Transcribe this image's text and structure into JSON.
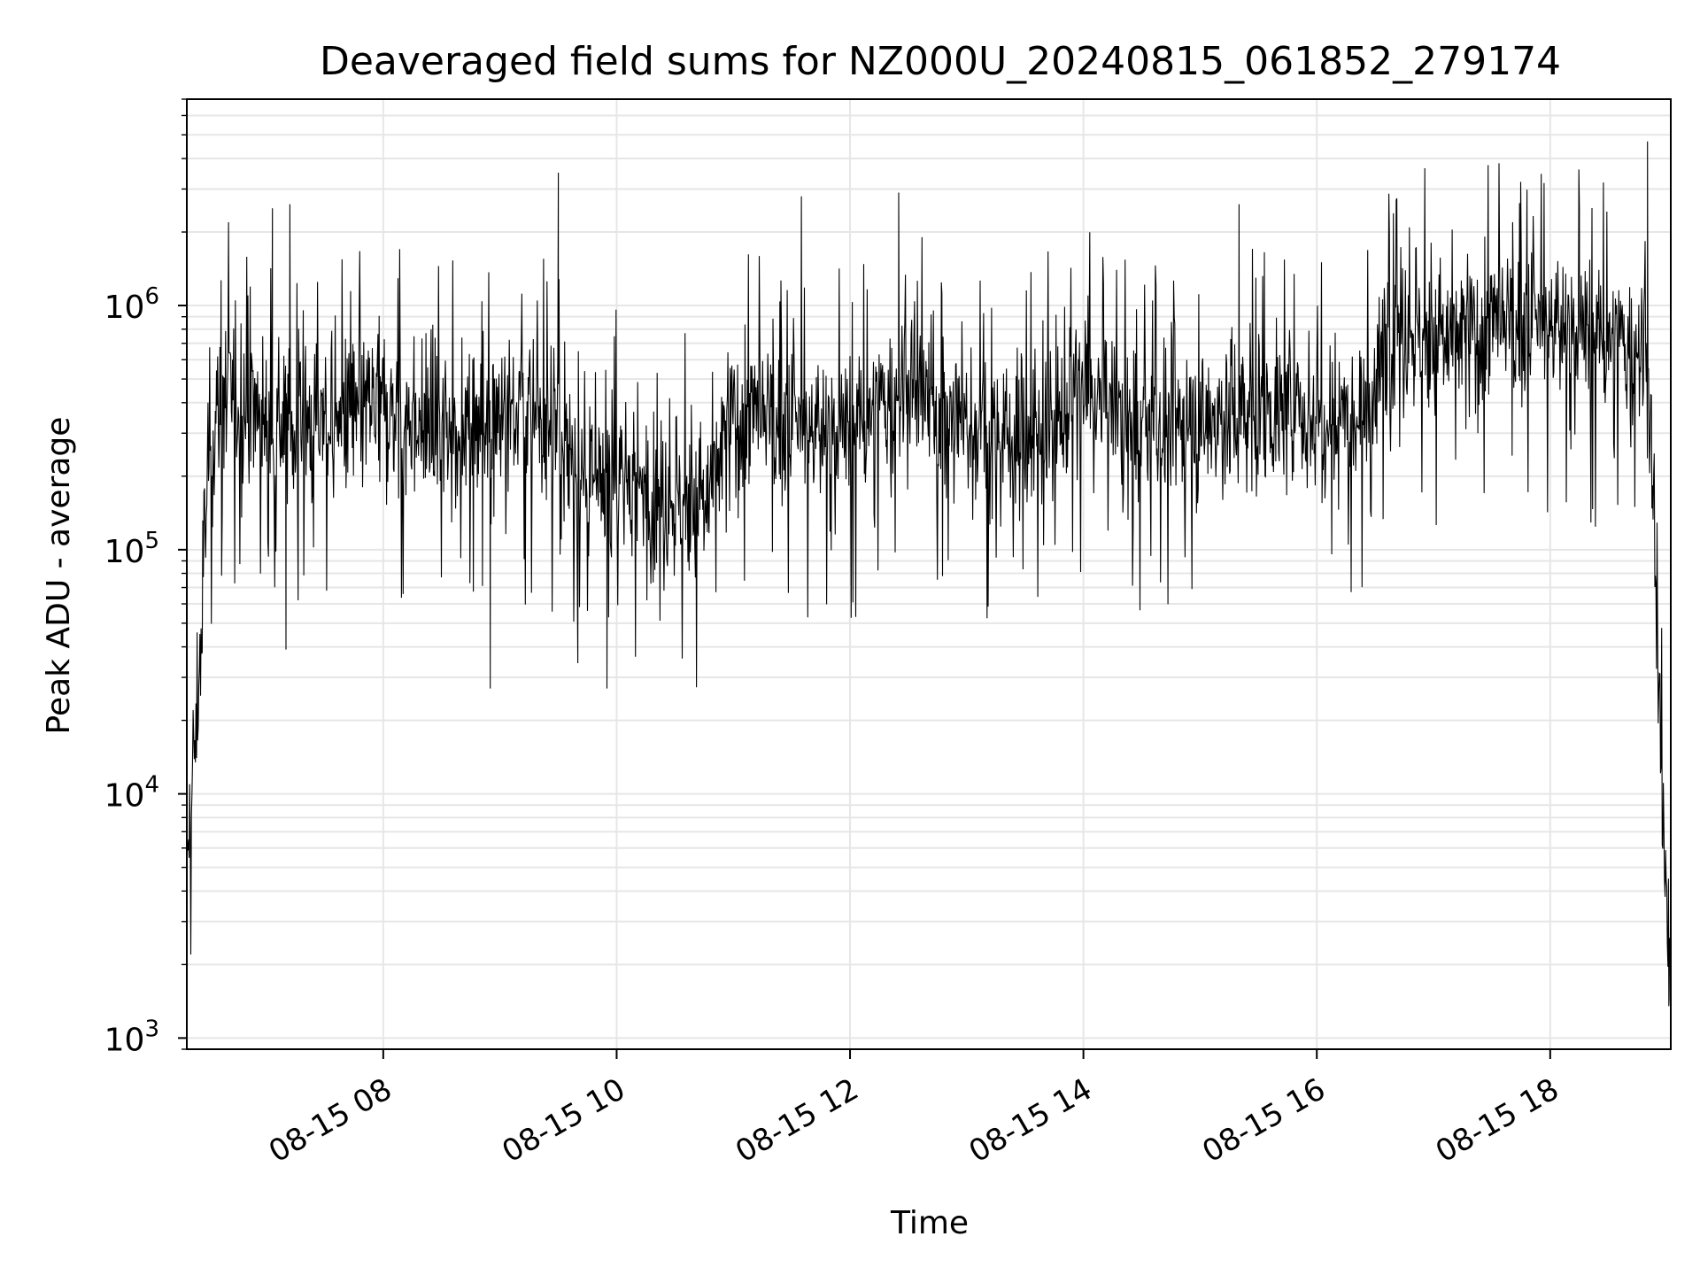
{
  "chart_data": {
    "type": "line",
    "title": "Deaveraged field sums for NZ000U_20240815_061852_279174",
    "xlabel": "Time",
    "ylabel": "Peak ADU - average",
    "yscale": "log",
    "ylim": [
      900,
      7000000
    ],
    "xlim": [
      "2024-08-15 06:19",
      "2024-08-15 19:02"
    ],
    "grid": true,
    "x_ticks": [
      {
        "time": "2024-08-15 08:00",
        "label": "08-15 08"
      },
      {
        "time": "2024-08-15 10:00",
        "label": "08-15 10"
      },
      {
        "time": "2024-08-15 12:00",
        "label": "08-15 12"
      },
      {
        "time": "2024-08-15 14:00",
        "label": "08-15 14"
      },
      {
        "time": "2024-08-15 16:00",
        "label": "08-15 16"
      },
      {
        "time": "2024-08-15 18:00",
        "label": "08-15 18"
      }
    ],
    "y_ticks": [
      {
        "value": 1000,
        "base": "10",
        "exp": "3"
      },
      {
        "value": 10000,
        "base": "10",
        "exp": "4"
      },
      {
        "value": 100000,
        "base": "10",
        "exp": "5"
      },
      {
        "value": 1000000,
        "base": "10",
        "exp": "6"
      }
    ],
    "line_color": "#000000",
    "grid_color": "#e6e6e6",
    "series": [
      {
        "noisy_trace_envelope": [
          {
            "t": "2024-08-15 06:19",
            "typical": 4000
          },
          {
            "t": "2024-08-15 06:22",
            "typical": 12000
          },
          {
            "t": "2024-08-15 06:25",
            "typical": 25000
          },
          {
            "t": "2024-08-15 06:30",
            "typical": 250000
          },
          {
            "t": "2024-08-15 06:40",
            "typical": 450000
          },
          {
            "t": "2024-08-15 07:00",
            "typical": 350000
          },
          {
            "t": "2024-08-15 07:30",
            "typical": 330000
          },
          {
            "t": "2024-08-15 08:00",
            "typical": 380000
          },
          {
            "t": "2024-08-15 08:30",
            "typical": 300000
          },
          {
            "t": "2024-08-15 09:00",
            "typical": 380000
          },
          {
            "t": "2024-08-15 09:30",
            "typical": 320000
          },
          {
            "t": "2024-08-15 09:45",
            "typical": 160000
          },
          {
            "t": "2024-08-15 10:00",
            "typical": 200000
          },
          {
            "t": "2024-08-15 10:30",
            "typical": 160000
          },
          {
            "t": "2024-08-15 10:45",
            "typical": 150000
          },
          {
            "t": "2024-08-15 11:00",
            "typical": 350000
          },
          {
            "t": "2024-08-15 11:30",
            "typical": 320000
          },
          {
            "t": "2024-08-15 12:00",
            "typical": 300000
          },
          {
            "t": "2024-08-15 12:30",
            "typical": 450000
          },
          {
            "t": "2024-08-15 13:00",
            "typical": 320000
          },
          {
            "t": "2024-08-15 13:30",
            "typical": 280000
          },
          {
            "t": "2024-08-15 14:00",
            "typical": 450000
          },
          {
            "t": "2024-08-15 14:30",
            "typical": 300000
          },
          {
            "t": "2024-08-15 15:00",
            "typical": 330000
          },
          {
            "t": "2024-08-15 15:30",
            "typical": 380000
          },
          {
            "t": "2024-08-15 16:00",
            "typical": 350000
          },
          {
            "t": "2024-08-15 16:30",
            "typical": 420000
          },
          {
            "t": "2024-08-15 16:40",
            "typical": 900000
          },
          {
            "t": "2024-08-15 17:00",
            "typical": 700000
          },
          {
            "t": "2024-08-15 17:30",
            "typical": 800000
          },
          {
            "t": "2024-08-15 18:00",
            "typical": 850000
          },
          {
            "t": "2024-08-15 18:30",
            "typical": 700000
          },
          {
            "t": "2024-08-15 18:50",
            "typical": 600000
          },
          {
            "t": "2024-08-15 18:54",
            "typical": 80000
          },
          {
            "t": "2024-08-15 18:57",
            "typical": 12000
          },
          {
            "t": "2024-08-15 19:00",
            "typical": 3000
          },
          {
            "t": "2024-08-15 19:02",
            "typical": 2000
          }
        ],
        "notable_peaks": [
          {
            "t": "2024-08-15 07:03",
            "value": 2500000
          },
          {
            "t": "2024-08-15 07:12",
            "value": 2600000
          },
          {
            "t": "2024-08-15 09:30",
            "value": 3500000
          },
          {
            "t": "2024-08-15 11:35",
            "value": 2800000
          },
          {
            "t": "2024-08-15 12:25",
            "value": 2900000
          },
          {
            "t": "2024-08-15 15:20",
            "value": 2600000
          },
          {
            "t": "2024-08-15 18:15",
            "value": 2500000
          },
          {
            "t": "2024-08-15 18:50",
            "value": 4700000
          }
        ],
        "notable_dips": [
          {
            "t": "2024-08-15 07:10",
            "value": 39000
          },
          {
            "t": "2024-08-15 08:55",
            "value": 27000
          },
          {
            "t": "2024-08-15 09:55",
            "value": 27000
          },
          {
            "t": "2024-08-15 19:01",
            "value": 1350
          }
        ]
      }
    ]
  }
}
